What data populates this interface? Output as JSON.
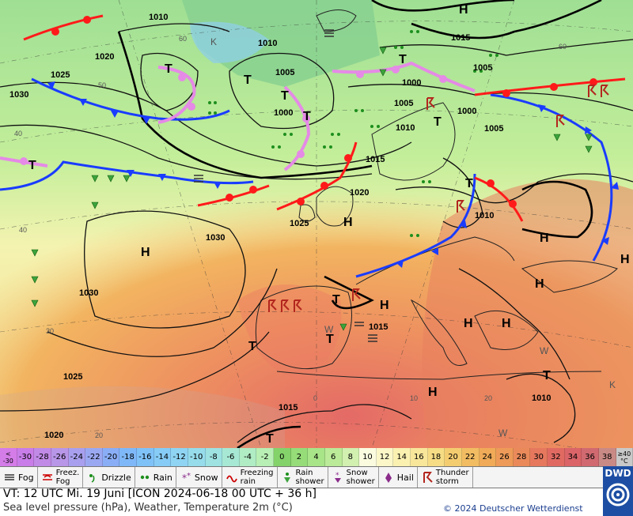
{
  "map": {
    "labels": {
      "H": "H",
      "T": "T",
      "K": "K",
      "W": "W"
    },
    "isobar_labels": [
      "1010",
      "1020",
      "1025",
      "1030",
      "1015",
      "1005",
      "1000",
      "1030",
      "1020",
      "1010",
      "1015",
      "1005",
      "1000",
      "1010",
      "1025",
      "1030",
      "1015",
      "1010",
      "1020",
      "1025",
      "1015",
      "1010",
      "1005",
      "1000",
      "1005"
    ],
    "gridlabels": [
      "60",
      "50",
      "40",
      "40",
      "30",
      "20",
      "0",
      "10",
      "20",
      "60"
    ],
    "front_colors": {
      "cold": "#1a3cff",
      "warm": "#ff1a1a",
      "occluded": "#e58ae6"
    }
  },
  "scale": {
    "cells": [
      {
        "label": "<\n-30",
        "color": "#d47ce8"
      },
      {
        "label": "-30",
        "color": "#c87de8"
      },
      {
        "label": "-28",
        "color": "#c08ae6"
      },
      {
        "label": "-26",
        "color": "#b896e8"
      },
      {
        "label": "-24",
        "color": "#a8a0ee"
      },
      {
        "label": "-22",
        "color": "#9aa8f2"
      },
      {
        "label": "-20",
        "color": "#8aaef6"
      },
      {
        "label": "-18",
        "color": "#7fb8f8"
      },
      {
        "label": "-16",
        "color": "#7fc2f8"
      },
      {
        "label": "-14",
        "color": "#86ccf6"
      },
      {
        "label": "-12",
        "color": "#8fd4f2"
      },
      {
        "label": "-10",
        "color": "#96dceb"
      },
      {
        "label": "-8",
        "color": "#9ee2e2"
      },
      {
        "label": "-6",
        "color": "#a7e8d4"
      },
      {
        "label": "-4",
        "color": "#b0ecc4"
      },
      {
        "label": "-2",
        "color": "#b8efb4"
      },
      {
        "label": "0",
        "color": "#84d26a"
      },
      {
        "label": "2",
        "color": "#96dc78"
      },
      {
        "label": "4",
        "color": "#a8e488"
      },
      {
        "label": "6",
        "color": "#bbea98"
      },
      {
        "label": "8",
        "color": "#d2f0b0"
      },
      {
        "label": "10",
        "color": "#fbfbe0"
      },
      {
        "label": "12",
        "color": "#fbf7c8"
      },
      {
        "label": "14",
        "color": "#faf0b0"
      },
      {
        "label": "16",
        "color": "#f8e69a"
      },
      {
        "label": "18",
        "color": "#f6dc84"
      },
      {
        "label": "20",
        "color": "#f4cc70"
      },
      {
        "label": "22",
        "color": "#f2bc62"
      },
      {
        "label": "24",
        "color": "#f0aa58"
      },
      {
        "label": "26",
        "color": "#ee9a58"
      },
      {
        "label": "28",
        "color": "#ea8a5a"
      },
      {
        "label": "30",
        "color": "#e6785e"
      },
      {
        "label": "32",
        "color": "#e06a62"
      },
      {
        "label": "34",
        "color": "#da6468"
      },
      {
        "label": "36",
        "color": "#d06a70"
      },
      {
        "label": "38",
        "color": "#c98a86"
      },
      {
        "label": "≥40\n°C",
        "color": "#c9c9c9"
      }
    ]
  },
  "symbols": [
    {
      "name": "fog",
      "label": "Fog"
    },
    {
      "name": "freez-fog",
      "label": "Freez.\nFog"
    },
    {
      "name": "drizzle",
      "label": "Drizzle"
    },
    {
      "name": "rain",
      "label": "Rain"
    },
    {
      "name": "snow",
      "label": "Snow"
    },
    {
      "name": "freezing-rain",
      "label": "Freezing\nrain"
    },
    {
      "name": "rain-shower",
      "label": "Rain\nshower"
    },
    {
      "name": "snow-shower",
      "label": "Snow\nshower"
    },
    {
      "name": "hail",
      "label": "Hail"
    },
    {
      "name": "thunderstorm",
      "label": "Thunder\nstorm"
    }
  ],
  "footer": {
    "vt": "VT: 12 UTC Mi.   19 Juni [ICON 2024-06-18  00 UTC + 36 h]",
    "desc": "Sea level pressure (hPa), Weather, Temperature 2m (°C)",
    "copyright": "© 2024 Deutscher Wetterdienst",
    "logo": "DWD"
  }
}
